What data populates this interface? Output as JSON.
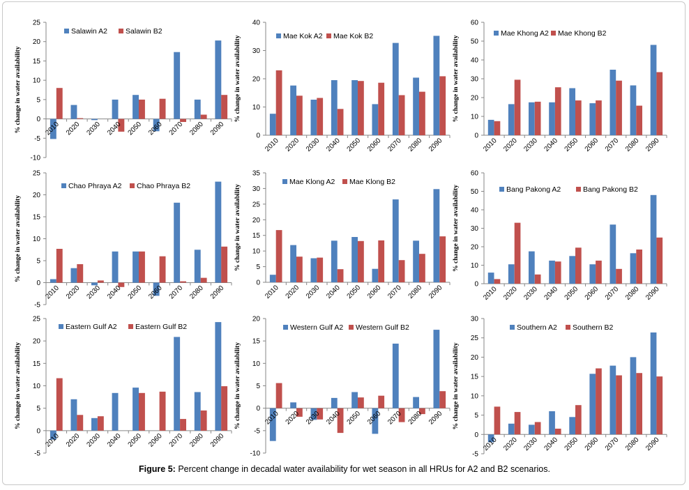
{
  "figure": {
    "caption_label": "Figure 5:",
    "caption_text": " Percent change in decadal water availability for wet season in all HRUs for A2 and B2 scenarios."
  },
  "colors": {
    "A2": "#4f81bd",
    "B2": "#c0504d"
  },
  "chart_data": [
    {
      "type": "bar",
      "categories": [
        "2010",
        "2020",
        "2030",
        "2040",
        "2050",
        "2060",
        "2070",
        "2080",
        "2090"
      ],
      "ylabel": "% change in water availability",
      "ylim": [
        -10,
        25
      ],
      "yticks": [
        -10,
        -5,
        0,
        5,
        10,
        15,
        20,
        25
      ],
      "series": [
        {
          "name": "Salawin A2",
          "values": [
            -5.2,
            3.6,
            -0.3,
            5.0,
            6.2,
            -3.2,
            17.3,
            5.0,
            20.3
          ]
        },
        {
          "name": "Salawin B2",
          "values": [
            8.0,
            0.2,
            0,
            -3.3,
            5.0,
            5.2,
            -0.8,
            1.1,
            6.2
          ]
        }
      ]
    },
    {
      "type": "bar",
      "categories": [
        "2010",
        "2020",
        "2030",
        "2040",
        "2050",
        "2060",
        "2070",
        "2080",
        "2090"
      ],
      "ylabel": "% change in water availability",
      "ylim": [
        0,
        40
      ],
      "yticks": [
        0,
        10,
        20,
        30,
        40
      ],
      "series": [
        {
          "name": "Mae Kok A2",
          "values": [
            7.6,
            17.6,
            12.6,
            19.5,
            19.5,
            11.0,
            32.7,
            20.4,
            35.2
          ]
        },
        {
          "name": "Mae Kok B2",
          "values": [
            23.0,
            14.0,
            13.2,
            9.3,
            19.2,
            18.6,
            14.2,
            15.4,
            20.9
          ]
        }
      ]
    },
    {
      "type": "bar",
      "categories": [
        "2010",
        "2020",
        "2030",
        "2040",
        "2050",
        "2060",
        "2070",
        "2080",
        "2090"
      ],
      "ylabel": "% change in water availability",
      "ylim": [
        0,
        60
      ],
      "yticks": [
        0,
        10,
        20,
        30,
        40,
        50,
        60
      ],
      "series": [
        {
          "name": "Mae Khong A2",
          "values": [
            8.2,
            16.5,
            17.5,
            17.5,
            25.0,
            17.0,
            34.8,
            26.5,
            48.0
          ]
        },
        {
          "name": "Mae Khong B2",
          "values": [
            7.5,
            29.5,
            17.8,
            25.5,
            18.5,
            18.5,
            29.0,
            15.7,
            33.5
          ]
        }
      ]
    },
    {
      "type": "bar",
      "categories": [
        "2010",
        "2020",
        "2030",
        "2040",
        "2050",
        "2060",
        "2070",
        "2080",
        "2090"
      ],
      "ylabel": "% change in water availability",
      "ylim": [
        -5,
        25
      ],
      "yticks": [
        -5,
        0,
        5,
        10,
        15,
        20,
        25
      ],
      "series": [
        {
          "name": "Chao Phraya A2",
          "values": [
            0.8,
            3.3,
            -0.6,
            7.1,
            7.1,
            -3.0,
            18.2,
            7.5,
            23.0
          ]
        },
        {
          "name": "Chao Phraya B2",
          "values": [
            7.7,
            4.2,
            0.5,
            -1.0,
            7.1,
            6.0,
            0.3,
            1.1,
            8.2
          ]
        }
      ]
    },
    {
      "type": "bar",
      "categories": [
        "2010",
        "2020",
        "2030",
        "2040",
        "2050",
        "2060",
        "2070",
        "2080",
        "2090"
      ],
      "ylabel": "% change in water availability",
      "ylim": [
        0,
        35
      ],
      "yticks": [
        0,
        5,
        10,
        15,
        20,
        25,
        30,
        35
      ],
      "series": [
        {
          "name": "Mae Klong A2",
          "values": [
            2.4,
            11.9,
            7.7,
            13.3,
            14.5,
            4.3,
            26.5,
            13.3,
            29.8
          ]
        },
        {
          "name": "Mae Klong B2",
          "values": [
            16.7,
            8.2,
            7.9,
            4.2,
            13.2,
            13.4,
            7.1,
            9.1,
            14.7
          ]
        }
      ]
    },
    {
      "type": "bar",
      "categories": [
        "2010",
        "2020",
        "2030",
        "2040",
        "2050",
        "2060",
        "2070",
        "2080",
        "2090"
      ],
      "ylabel": "% change in water availability",
      "ylim": [
        0,
        60
      ],
      "yticks": [
        0,
        10,
        20,
        30,
        40,
        50,
        60
      ],
      "series": [
        {
          "name": "Bang Pakong A2",
          "values": [
            6.0,
            10.5,
            17.5,
            12.5,
            15.0,
            10.5,
            32.0,
            16.5,
            48.0
          ]
        },
        {
          "name": "Bang Pakong B2",
          "values": [
            2.5,
            33.0,
            5.0,
            12.0,
            19.5,
            12.5,
            8.0,
            18.5,
            25.0
          ]
        }
      ]
    },
    {
      "type": "bar",
      "categories": [
        "2010",
        "2020",
        "2030",
        "2040",
        "2050",
        "2060",
        "2070",
        "2080",
        "2090"
      ],
      "ylabel": "% change in water availability",
      "ylim": [
        -5,
        25
      ],
      "yticks": [
        -5,
        0,
        5,
        10,
        15,
        20,
        25
      ],
      "series": [
        {
          "name": "Eastern Gulf A2",
          "values": [
            -2.0,
            7.0,
            2.8,
            8.4,
            9.6,
            0,
            20.9,
            8.6,
            24.2
          ]
        },
        {
          "name": "Eastern Gulf B2",
          "values": [
            11.7,
            3.5,
            3.2,
            0,
            8.4,
            8.7,
            2.6,
            4.5,
            9.9
          ]
        }
      ]
    },
    {
      "type": "bar",
      "categories": [
        "2010",
        "2020",
        "2030",
        "2040",
        "2050",
        "2060",
        "2070",
        "2080",
        "2090"
      ],
      "ylabel": "% change in water availability",
      "ylim": [
        -10,
        20
      ],
      "yticks": [
        -10,
        -5,
        0,
        5,
        10,
        15,
        20
      ],
      "series": [
        {
          "name": "Western Gulf A2",
          "values": [
            -7.3,
            1.3,
            -2.6,
            2.3,
            3.6,
            -5.7,
            14.4,
            2.5,
            17.5
          ]
        },
        {
          "name": "Western Gulf B2",
          "values": [
            5.6,
            -1.9,
            -2.5,
            -5.5,
            2.4,
            2.8,
            -3.1,
            -1.3,
            3.8
          ]
        }
      ]
    },
    {
      "type": "bar",
      "categories": [
        "2010",
        "2020",
        "2030",
        "2040",
        "2050",
        "2060",
        "2070",
        "2080",
        "2090"
      ],
      "ylabel": "% change in water availability",
      "ylim": [
        -5,
        30
      ],
      "yticks": [
        -5,
        0,
        5,
        10,
        15,
        20,
        25,
        30
      ],
      "series": [
        {
          "name": "Southern A2",
          "values": [
            -2.0,
            2.8,
            2.5,
            6.0,
            4.5,
            15.7,
            17.8,
            20.0,
            26.4
          ]
        },
        {
          "name": "Southern B2",
          "values": [
            7.2,
            5.8,
            3.2,
            1.5,
            7.6,
            17.1,
            15.3,
            15.9,
            15.0
          ]
        }
      ]
    }
  ]
}
